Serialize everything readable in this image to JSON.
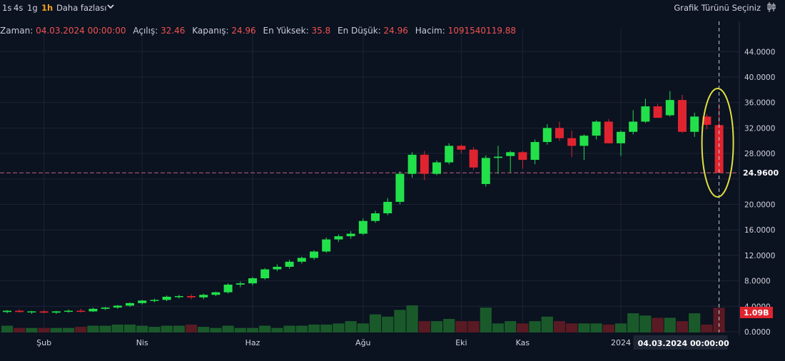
{
  "toolbar": {
    "timeframes": [
      "1s",
      "4s",
      "1g",
      "1h"
    ],
    "active_timeframe": "1h",
    "more_label": "Daha fazlası",
    "chart_type_label": "Grafik Türünü Seçiniz"
  },
  "ohlc": {
    "time_label": "Zaman:",
    "time_value": "04.03.2024 00:00:00",
    "open_label": "Açılış:",
    "open_value": "32.46",
    "close_label": "Kapanış:",
    "close_value": "24.96",
    "high_label": "En Yüksek:",
    "high_value": "35.8",
    "low_label": "En Düşük:",
    "low_value": "24.96",
    "volume_label": "Hacim:",
    "volume_value": "1091540119.88"
  },
  "colors": {
    "background": "#0b1220",
    "up": "#22e04a",
    "down": "#e0242f",
    "volume_up": "#1a5a2a",
    "volume_down": "#5a1a24",
    "highlight_ellipse": "#e0e040",
    "price_line": "#c06080"
  },
  "chart_data": {
    "type": "candlestick",
    "y_ticks": [
      "44.0000",
      "40.0000",
      "36.0000",
      "32.0000",
      "28.0000",
      "24.9600",
      "20.0000",
      "16.0000",
      "12.0000",
      "8.0000",
      "4.0000",
      "0.0000"
    ],
    "y_tick_values": [
      44,
      40,
      36,
      32,
      28,
      24,
      20,
      16,
      12,
      8,
      4,
      0
    ],
    "ylim": [
      0,
      46.5
    ],
    "current_price_label": "24.9600",
    "current_price": 24.96,
    "volume_label": "1.09B",
    "x_ticks": [
      "Şub",
      "Nis",
      "Haz",
      "Ağu",
      "Eki",
      "Kas",
      "2024"
    ],
    "x_tick_index": [
      3,
      11,
      20,
      29,
      37,
      42,
      50
    ],
    "crosshair_time_label": "04.03.2024   00:00:00",
    "grid": true,
    "candles": [
      {
        "o": 3.1,
        "h": 3.4,
        "l": 2.9,
        "c": 3.3,
        "v": 0.3
      },
      {
        "o": 3.3,
        "h": 3.5,
        "l": 3.0,
        "c": 3.1,
        "v": 0.2
      },
      {
        "o": 3.1,
        "h": 3.3,
        "l": 2.8,
        "c": 3.2,
        "v": 0.2
      },
      {
        "o": 3.2,
        "h": 3.4,
        "l": 2.9,
        "c": 3.0,
        "v": 0.2
      },
      {
        "o": 3.0,
        "h": 3.3,
        "l": 2.8,
        "c": 3.2,
        "v": 0.2
      },
      {
        "o": 3.2,
        "h": 3.5,
        "l": 3.0,
        "c": 3.3,
        "v": 0.2
      },
      {
        "o": 3.3,
        "h": 3.6,
        "l": 3.0,
        "c": 3.2,
        "v": 0.25
      },
      {
        "o": 3.2,
        "h": 3.8,
        "l": 3.1,
        "c": 3.6,
        "v": 0.3
      },
      {
        "o": 3.6,
        "h": 3.9,
        "l": 3.4,
        "c": 3.8,
        "v": 0.3
      },
      {
        "o": 3.8,
        "h": 4.2,
        "l": 3.6,
        "c": 4.1,
        "v": 0.35
      },
      {
        "o": 4.1,
        "h": 4.6,
        "l": 3.9,
        "c": 4.5,
        "v": 0.35
      },
      {
        "o": 4.5,
        "h": 5.0,
        "l": 4.3,
        "c": 4.9,
        "v": 0.3
      },
      {
        "o": 4.9,
        "h": 5.2,
        "l": 4.6,
        "c": 5.0,
        "v": 0.25
      },
      {
        "o": 5.0,
        "h": 5.7,
        "l": 4.8,
        "c": 5.5,
        "v": 0.3
      },
      {
        "o": 5.5,
        "h": 5.8,
        "l": 5.2,
        "c": 5.6,
        "v": 0.3
      },
      {
        "o": 5.6,
        "h": 5.9,
        "l": 5.1,
        "c": 5.4,
        "v": 0.35
      },
      {
        "o": 5.4,
        "h": 6.0,
        "l": 5.1,
        "c": 5.8,
        "v": 0.25
      },
      {
        "o": 5.8,
        "h": 6.3,
        "l": 5.6,
        "c": 6.2,
        "v": 0.2
      },
      {
        "o": 6.2,
        "h": 7.6,
        "l": 6.0,
        "c": 7.4,
        "v": 0.3
      },
      {
        "o": 7.4,
        "h": 7.9,
        "l": 7.0,
        "c": 7.6,
        "v": 0.2
      },
      {
        "o": 7.6,
        "h": 8.6,
        "l": 7.3,
        "c": 8.4,
        "v": 0.2
      },
      {
        "o": 8.4,
        "h": 10.0,
        "l": 8.2,
        "c": 9.8,
        "v": 0.3
      },
      {
        "o": 9.8,
        "h": 10.6,
        "l": 9.5,
        "c": 10.2,
        "v": 0.2
      },
      {
        "o": 10.2,
        "h": 11.3,
        "l": 9.9,
        "c": 11.0,
        "v": 0.3
      },
      {
        "o": 11.0,
        "h": 11.8,
        "l": 10.7,
        "c": 11.6,
        "v": 0.3
      },
      {
        "o": 11.6,
        "h": 12.8,
        "l": 11.3,
        "c": 12.6,
        "v": 0.35
      },
      {
        "o": 12.6,
        "h": 14.8,
        "l": 12.4,
        "c": 14.5,
        "v": 0.35
      },
      {
        "o": 14.5,
        "h": 15.3,
        "l": 14.1,
        "c": 15.0,
        "v": 0.4
      },
      {
        "o": 15.0,
        "h": 15.8,
        "l": 14.6,
        "c": 15.4,
        "v": 0.5
      },
      {
        "o": 15.4,
        "h": 17.8,
        "l": 15.2,
        "c": 17.4,
        "v": 0.4
      },
      {
        "o": 17.4,
        "h": 19.0,
        "l": 17.1,
        "c": 18.6,
        "v": 0.8
      },
      {
        "o": 18.6,
        "h": 21.0,
        "l": 18.3,
        "c": 20.4,
        "v": 0.7
      },
      {
        "o": 20.4,
        "h": 25.2,
        "l": 20.0,
        "c": 24.8,
        "v": 1.0
      },
      {
        "o": 24.8,
        "h": 28.2,
        "l": 24.2,
        "c": 27.8,
        "v": 1.2
      },
      {
        "o": 27.8,
        "h": 28.4,
        "l": 23.8,
        "c": 24.8,
        "v": 0.5
      },
      {
        "o": 24.8,
        "h": 26.9,
        "l": 24.6,
        "c": 26.6,
        "v": 0.5
      },
      {
        "o": 26.6,
        "h": 29.6,
        "l": 26.3,
        "c": 29.2,
        "v": 0.6
      },
      {
        "o": 29.2,
        "h": 29.4,
        "l": 28.0,
        "c": 28.6,
        "v": 0.5
      },
      {
        "o": 28.6,
        "h": 29.0,
        "l": 25.4,
        "c": 25.8,
        "v": 0.5
      },
      {
        "o": 23.2,
        "h": 27.7,
        "l": 22.8,
        "c": 27.3,
        "v": 1.1
      },
      {
        "o": 27.3,
        "h": 29.2,
        "l": 24.8,
        "c": 27.5,
        "v": 0.4
      },
      {
        "o": 27.6,
        "h": 28.4,
        "l": 25.0,
        "c": 28.2,
        "v": 0.5
      },
      {
        "o": 28.2,
        "h": 28.4,
        "l": 25.6,
        "c": 27.0,
        "v": 0.4
      },
      {
        "o": 27.0,
        "h": 30.2,
        "l": 26.3,
        "c": 29.8,
        "v": 0.5
      },
      {
        "o": 29.8,
        "h": 32.6,
        "l": 29.4,
        "c": 32.0,
        "v": 0.7
      },
      {
        "o": 32.0,
        "h": 33.0,
        "l": 30.0,
        "c": 30.4,
        "v": 0.5
      },
      {
        "o": 30.4,
        "h": 31.6,
        "l": 27.4,
        "c": 29.2,
        "v": 0.4
      },
      {
        "o": 29.2,
        "h": 31.0,
        "l": 27.0,
        "c": 30.8,
        "v": 0.4
      },
      {
        "o": 30.8,
        "h": 33.2,
        "l": 30.2,
        "c": 33.0,
        "v": 0.4
      },
      {
        "o": 33.0,
        "h": 33.4,
        "l": 29.6,
        "c": 29.6,
        "v": 0.35
      },
      {
        "o": 29.6,
        "h": 31.6,
        "l": 27.6,
        "c": 31.4,
        "v": 0.4
      },
      {
        "o": 31.4,
        "h": 34.8,
        "l": 31.0,
        "c": 33.0,
        "v": 0.85
      },
      {
        "o": 33.0,
        "h": 36.6,
        "l": 32.8,
        "c": 35.4,
        "v": 0.75
      },
      {
        "o": 35.4,
        "h": 35.8,
        "l": 33.6,
        "c": 33.6,
        "v": 0.65
      },
      {
        "o": 34.0,
        "h": 37.8,
        "l": 33.8,
        "c": 36.4,
        "v": 0.65
      },
      {
        "o": 36.4,
        "h": 37.2,
        "l": 31.2,
        "c": 31.4,
        "v": 0.5
      },
      {
        "o": 31.4,
        "h": 34.4,
        "l": 30.6,
        "c": 33.8,
        "v": 0.85
      },
      {
        "o": 33.8,
        "h": 34.2,
        "l": 31.8,
        "c": 32.5,
        "v": 0.35
      },
      {
        "o": 32.46,
        "h": 35.8,
        "l": 24.96,
        "c": 24.96,
        "v": 1.09
      }
    ]
  }
}
